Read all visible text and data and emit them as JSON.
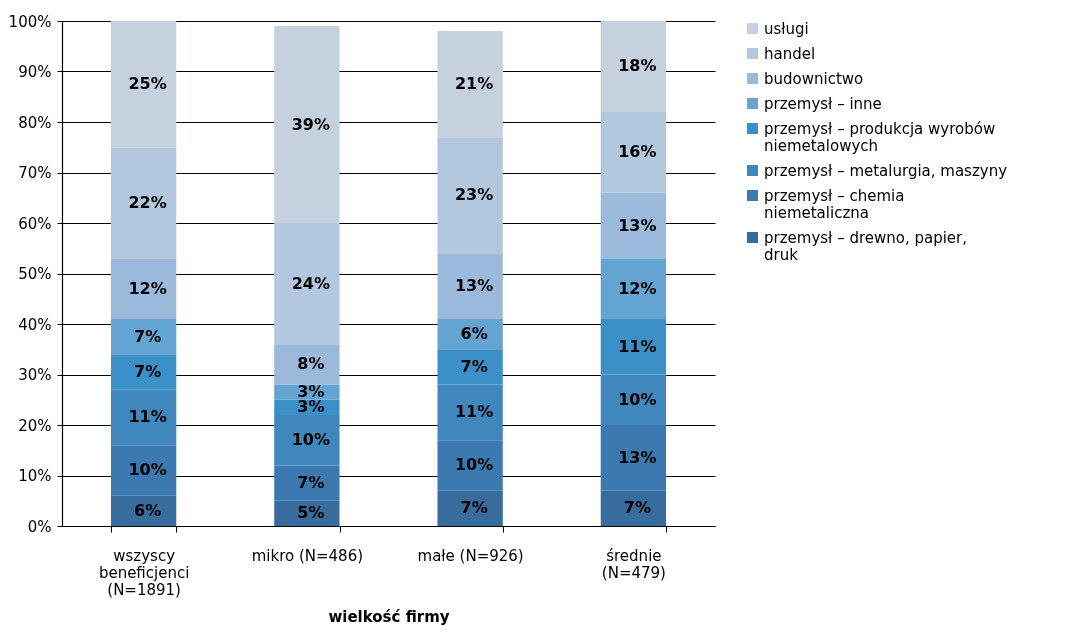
{
  "chart_data": {
    "type": "bar",
    "stacked": true,
    "xlabel": "wielkość firmy",
    "categories": [
      "wszyscy beneficjenci (N=1891)",
      "mikro (N=486)",
      "małe (N=926)",
      "średnie (N=479)"
    ],
    "ylim": [
      0,
      100
    ],
    "yticks": [
      {
        "value": 0,
        "label": "0%"
      },
      {
        "value": 10,
        "label": "10%"
      },
      {
        "value": 20,
        "label": "20%"
      },
      {
        "value": 30,
        "label": "30%"
      },
      {
        "value": 40,
        "label": "40%"
      },
      {
        "value": 50,
        "label": "50%"
      },
      {
        "value": 60,
        "label": "60%"
      },
      {
        "value": 70,
        "label": "70%"
      },
      {
        "value": 80,
        "label": "80%"
      },
      {
        "value": 90,
        "label": "90%"
      },
      {
        "value": 100,
        "label": "100%"
      }
    ],
    "grid": "y",
    "legend": "right",
    "series": [
      {
        "name": "przemysł – drewno, papier, druk",
        "color": "#386c9c",
        "values": [
          6,
          5,
          7,
          7
        ],
        "value_labels": [
          "6%",
          "5%",
          "7%",
          "7%"
        ]
      },
      {
        "name": "przemysł – chemia niemetaliczna",
        "color": "#3b79b0",
        "values": [
          10,
          7,
          10,
          13
        ],
        "value_labels": [
          "10%",
          "7%",
          "10%",
          "13%"
        ]
      },
      {
        "name": "przemysł – metalurgia, maszyny",
        "color": "#4087be",
        "values": [
          11,
          10,
          11,
          10
        ],
        "value_labels": [
          "11%",
          "10%",
          "11%",
          "10%"
        ]
      },
      {
        "name": "przemysł – produkcja wyrobów niemetalowych",
        "color": "#3c90c8",
        "values": [
          7,
          3,
          7,
          11
        ],
        "value_labels": [
          "7%",
          "3%",
          "7%",
          "11%"
        ]
      },
      {
        "name": "przemysł – inne",
        "color": "#64a4d2",
        "values": [
          7,
          3,
          6,
          12
        ],
        "value_labels": [
          "7%",
          "3%",
          "6%",
          "12%"
        ]
      },
      {
        "name": "budownictwo",
        "color": "#9bb9da",
        "values": [
          12,
          8,
          13,
          13
        ],
        "value_labels": [
          "12%",
          "8%",
          "13%",
          "13%"
        ]
      },
      {
        "name": "handel",
        "color": "#b3c8df",
        "values": [
          22,
          24,
          23,
          16
        ],
        "value_labels": [
          "22%",
          "24%",
          "23%",
          "16%"
        ]
      },
      {
        "name": "usługi",
        "color": "#c5d1de",
        "values": [
          25,
          39,
          21,
          18
        ],
        "value_labels": [
          "25%",
          "39%",
          "21%",
          "18%"
        ]
      }
    ]
  }
}
